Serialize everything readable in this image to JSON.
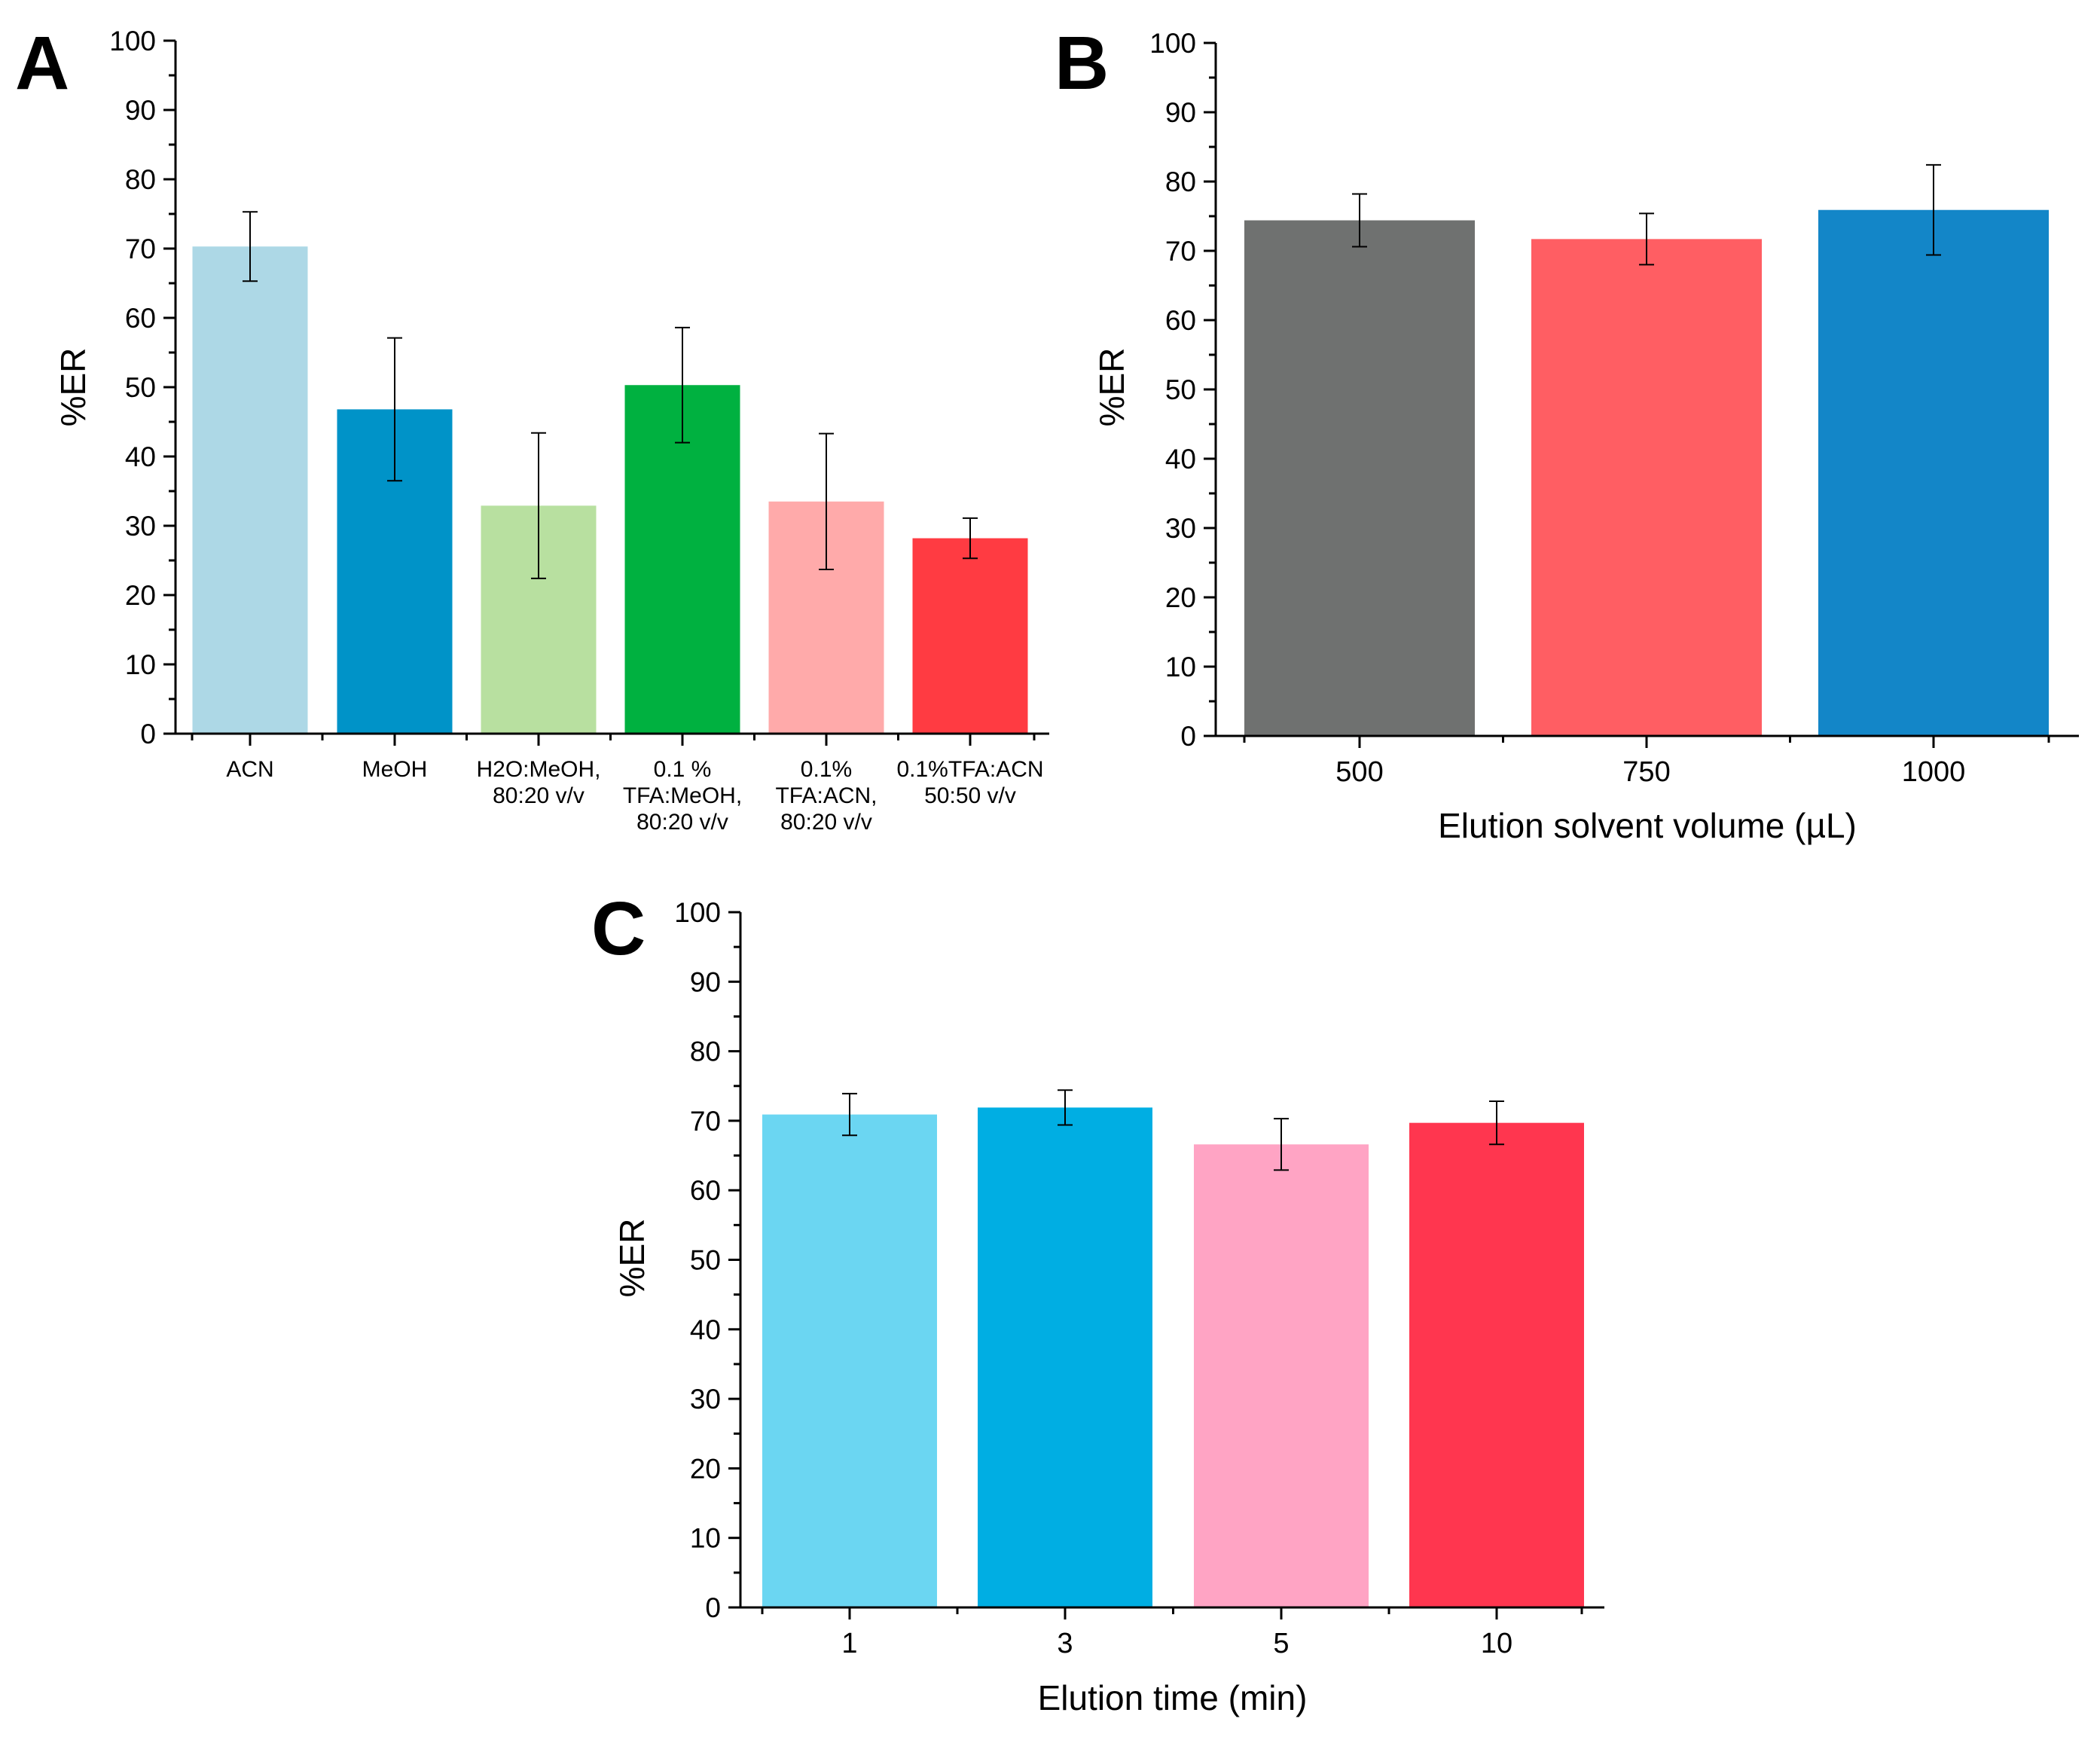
{
  "chart_data": [
    {
      "panel": "A",
      "type": "bar",
      "title": "",
      "xlabel": "",
      "ylabel": "%ER",
      "ylim": [
        0,
        100
      ],
      "yticks": [
        0,
        10,
        20,
        30,
        40,
        50,
        60,
        70,
        80,
        90,
        100
      ],
      "categories": [
        [
          "ACN"
        ],
        [
          "MeOH"
        ],
        [
          "H2O:MeOH,",
          "80:20 v/v"
        ],
        [
          "0.1 %",
          "TFA:MeOH,",
          "80:20 v/v"
        ],
        [
          "0.1%",
          "TFA:ACN,",
          "80:20 v/v"
        ],
        [
          "0.1%TFA:ACN",
          "50:50 v/v"
        ]
      ],
      "values": [
        70.3,
        46.8,
        32.9,
        50.3,
        33.5,
        28.2
      ],
      "errors": [
        5.0,
        10.3,
        10.5,
        8.3,
        9.8,
        2.9
      ],
      "colors": [
        "#add8e6",
        "#0093c8",
        "#b8e0a0",
        "#00b140",
        "#ffaaaa",
        "#ff3b42"
      ]
    },
    {
      "panel": "B",
      "type": "bar",
      "title": "",
      "xlabel": "Elution solvent volume (µL)",
      "ylabel": "%ER",
      "ylim": [
        0,
        100
      ],
      "yticks": [
        0,
        10,
        20,
        30,
        40,
        50,
        60,
        70,
        80,
        90,
        100
      ],
      "categories": [
        [
          "500"
        ],
        [
          "750"
        ],
        [
          "1000"
        ]
      ],
      "values": [
        74.4,
        71.7,
        75.9
      ],
      "errors": [
        3.8,
        3.7,
        6.5
      ],
      "colors": [
        "#6f7170",
        "#ff5e63",
        "#1386c8"
      ]
    },
    {
      "panel": "C",
      "type": "bar",
      "title": "",
      "xlabel": "Elution time (min)",
      "ylabel": "%ER",
      "ylim": [
        0,
        100
      ],
      "yticks": [
        0,
        10,
        20,
        30,
        40,
        50,
        60,
        70,
        80,
        90,
        100
      ],
      "categories": [
        [
          "1"
        ],
        [
          "3"
        ],
        [
          "5"
        ],
        [
          "10"
        ]
      ],
      "values": [
        70.9,
        71.9,
        66.6,
        69.7
      ],
      "errors": [
        3.0,
        2.5,
        3.7,
        3.1
      ],
      "colors": [
        "#6bd6f2",
        "#00aee3",
        "#ffa4c4",
        "#ff364f"
      ]
    }
  ]
}
